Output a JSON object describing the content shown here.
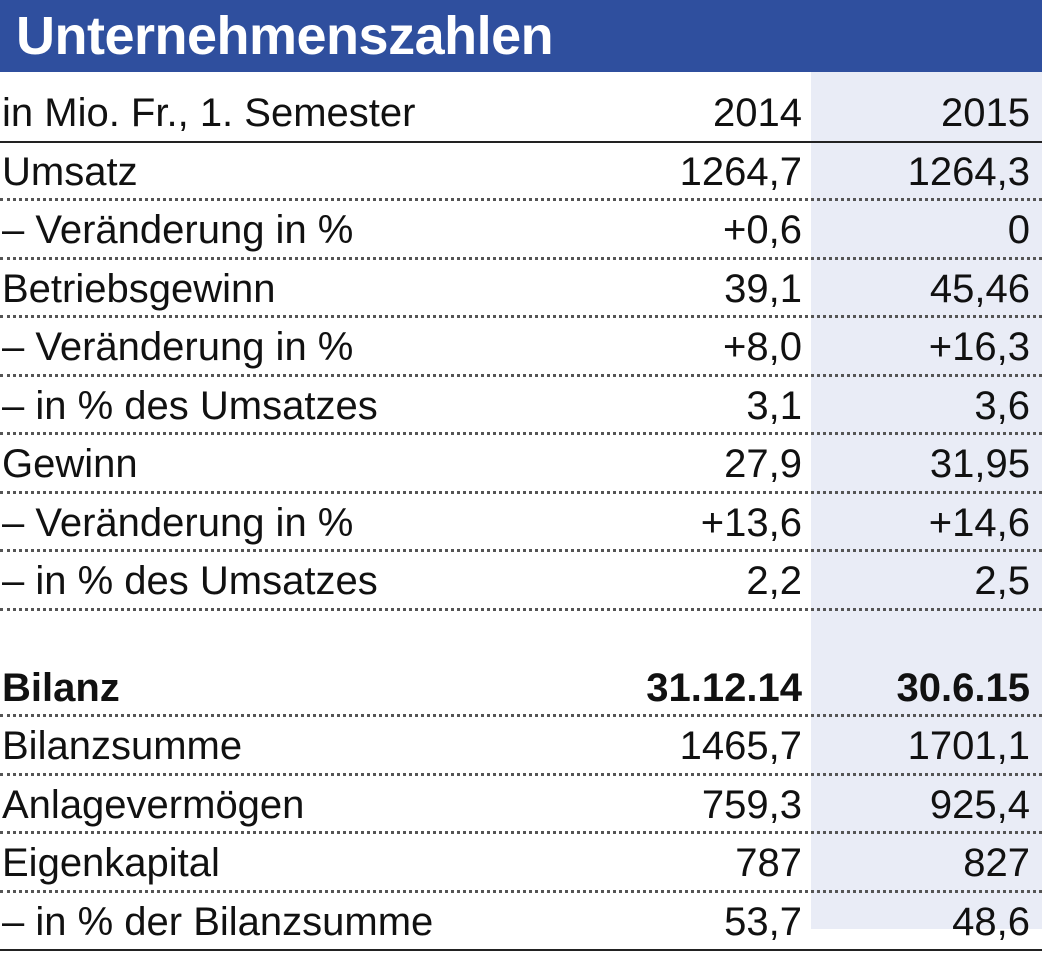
{
  "title": "Unternehmenszahlen",
  "header": {
    "label": "in Mio. Fr., 1. Semester",
    "col1": "2014",
    "col2": "2015"
  },
  "rows": [
    {
      "label": "Umsatz",
      "v1": "1264,7",
      "v2": "1264,3"
    },
    {
      "label": "– Veränderung in %",
      "v1": "+0,6",
      "v2": "0"
    },
    {
      "label": "Betriebsgewinn",
      "v1": "39,1",
      "v2": "45,46"
    },
    {
      "label": "– Veränderung in %",
      "v1": "+8,0",
      "v2": "+16,3"
    },
    {
      "label": "– in % des Umsatzes",
      "v1": "3,1",
      "v2": "3,6"
    },
    {
      "label": "Gewinn",
      "v1": "27,9",
      "v2": "31,95"
    },
    {
      "label": "– Veränderung in %",
      "v1": "+13,6",
      "v2": "+14,6"
    },
    {
      "label": "– in % des Umsatzes",
      "v1": "2,2",
      "v2": "2,5"
    }
  ],
  "bilanz_header": {
    "label": "Bilanz",
    "col1": "31.12.14",
    "col2": "30.6.15"
  },
  "bilanz_rows": [
    {
      "label": "Bilanzsumme",
      "v1": "1465,7",
      "v2": "1701,1"
    },
    {
      "label": "Anlagevermögen",
      "v1": "759,3",
      "v2": "925,4"
    },
    {
      "label": "Eigenkapital",
      "v1": "787",
      "v2": "827"
    },
    {
      "label": "– in % der Bilanzsumme",
      "v1": "53,7",
      "v2": "48,6"
    }
  ],
  "colors": {
    "title_bar": "#2f4f9e",
    "column_shade": "#e9ecf6"
  }
}
